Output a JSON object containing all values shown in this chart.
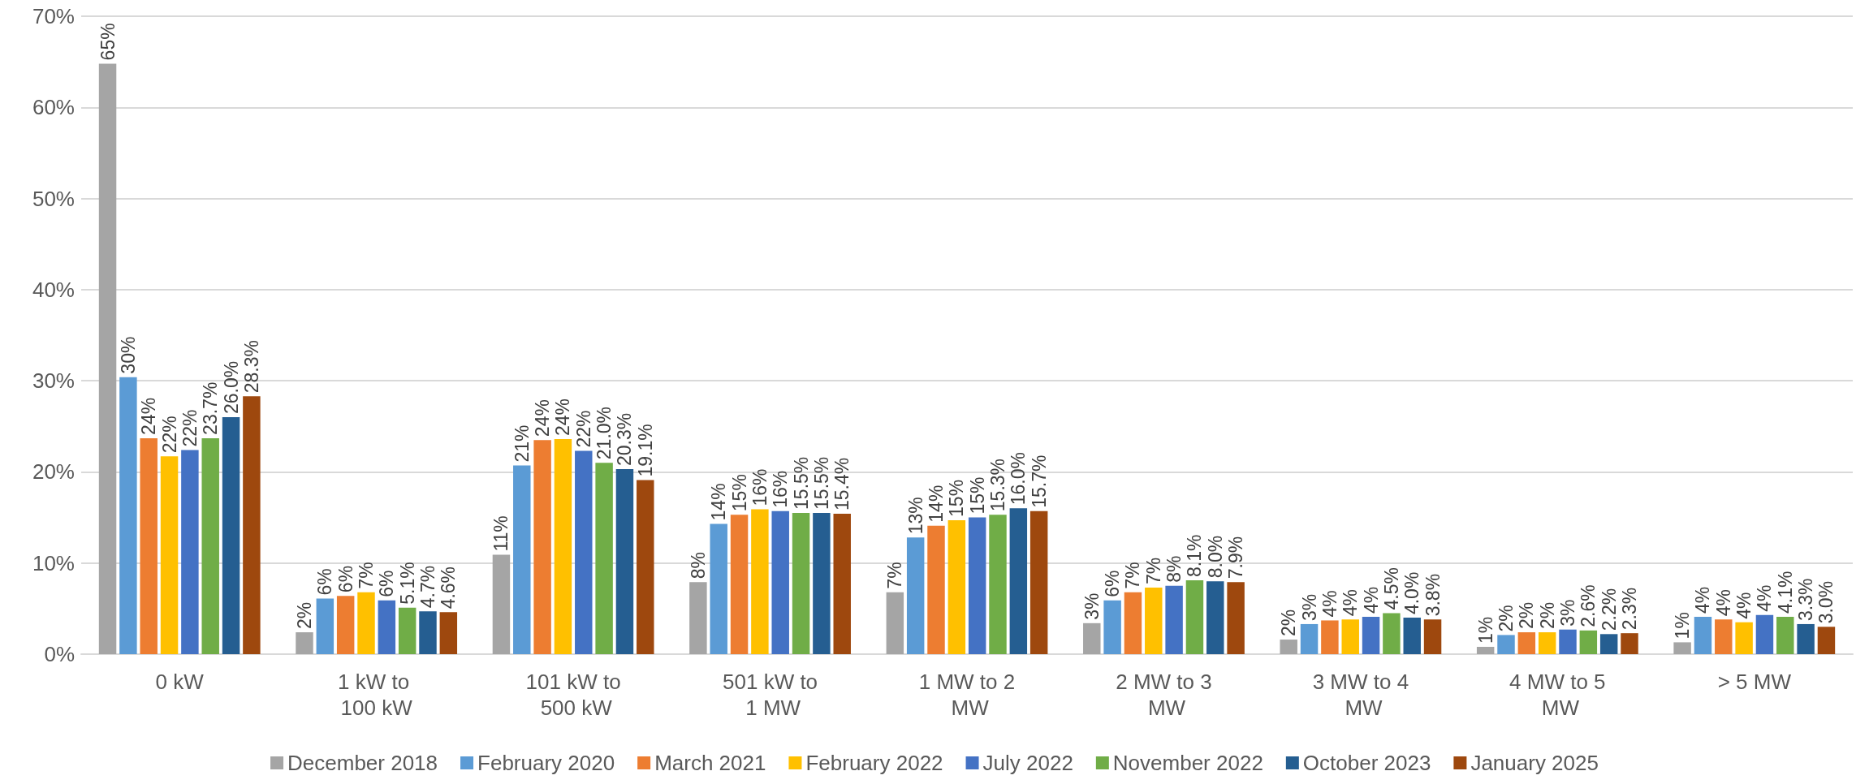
{
  "chart_data": {
    "type": "bar",
    "categories": [
      "0 kW",
      "1 kW to 100 kW",
      "101 kW to 500 kW",
      "501 kW to 1 MW",
      "1 MW to 2 MW",
      "2 MW to 3 MW",
      "3 MW to 4 MW",
      "4 MW to 5 MW",
      "> 5 MW"
    ],
    "series": [
      {
        "name": "December 2018",
        "color": "#a5a5a5",
        "values": [
          64.8,
          2.4,
          10.9,
          7.9,
          6.8,
          3.4,
          1.6,
          0.8,
          1.3
        ],
        "value_labels": [
          "65%",
          "2%",
          "11%",
          "8%",
          "7%",
          "3%",
          "2%",
          "1%",
          "1%"
        ]
      },
      {
        "name": "February 2020",
        "color": "#5b9bd5",
        "values": [
          30.4,
          6.1,
          20.7,
          14.3,
          12.8,
          5.9,
          3.3,
          2.1,
          4.1
        ],
        "value_labels": [
          "30%",
          "6%",
          "21%",
          "14%",
          "13%",
          "6%",
          "3%",
          "2%",
          "4%"
        ]
      },
      {
        "name": "March 2021",
        "color": "#ed7d31",
        "values": [
          23.7,
          6.4,
          23.5,
          15.3,
          14.1,
          6.8,
          3.7,
          2.4,
          3.8
        ],
        "value_labels": [
          "24%",
          "6%",
          "24%",
          "15%",
          "14%",
          "7%",
          "4%",
          "2%",
          "4%"
        ]
      },
      {
        "name": "February 2022",
        "color": "#ffc000",
        "values": [
          21.7,
          6.8,
          23.6,
          15.9,
          14.7,
          7.3,
          3.8,
          2.4,
          3.5
        ],
        "value_labels": [
          "22%",
          "7%",
          "24%",
          "16%",
          "15%",
          "7%",
          "4%",
          "2%",
          "4%"
        ]
      },
      {
        "name": "July 2022",
        "color": "#4472c4",
        "values": [
          22.4,
          5.9,
          22.3,
          15.7,
          15.0,
          7.5,
          4.1,
          2.7,
          4.3
        ],
        "value_labels": [
          "22%",
          "6%",
          "22%",
          "16%",
          "15%",
          "8%",
          "4%",
          "3%",
          "4%"
        ]
      },
      {
        "name": "November 2022",
        "color": "#70ad47",
        "values": [
          23.7,
          5.1,
          21.0,
          15.5,
          15.3,
          8.1,
          4.5,
          2.6,
          4.1
        ],
        "value_labels": [
          "23.7%",
          "5.1%",
          "21.0%",
          "15.5%",
          "15.3%",
          "8.1%",
          "4.5%",
          "2.6%",
          "4.1%"
        ]
      },
      {
        "name": "October 2023",
        "color": "#255e91",
        "values": [
          26.0,
          4.7,
          20.3,
          15.5,
          16.0,
          8.0,
          4.0,
          2.2,
          3.3
        ],
        "value_labels": [
          "26.0%",
          "4.7%",
          "20.3%",
          "15.5%",
          "16.0%",
          "8.0%",
          "4.0%",
          "2.2%",
          "3.3%"
        ]
      },
      {
        "name": "January 2025",
        "color": "#9e480e",
        "values": [
          28.3,
          4.6,
          19.1,
          15.4,
          15.7,
          7.9,
          3.8,
          2.3,
          3.0
        ],
        "value_labels": [
          "28.3%",
          "4.6%",
          "19.1%",
          "15.4%",
          "15.7%",
          "7.9%",
          "3.8%",
          "2.3%",
          "3.0%"
        ]
      }
    ],
    "ylim": [
      0,
      70
    ],
    "yticks": [
      {
        "value": 0,
        "label": "0%"
      },
      {
        "value": 10,
        "label": "10%"
      },
      {
        "value": 20,
        "label": "20%"
      },
      {
        "value": 30,
        "label": "30%"
      },
      {
        "value": 40,
        "label": "40%"
      },
      {
        "value": 50,
        "label": "50%"
      },
      {
        "value": 60,
        "label": "60%"
      },
      {
        "value": 70,
        "label": "70%"
      }
    ],
    "grid": "y",
    "legend": "bottom"
  }
}
